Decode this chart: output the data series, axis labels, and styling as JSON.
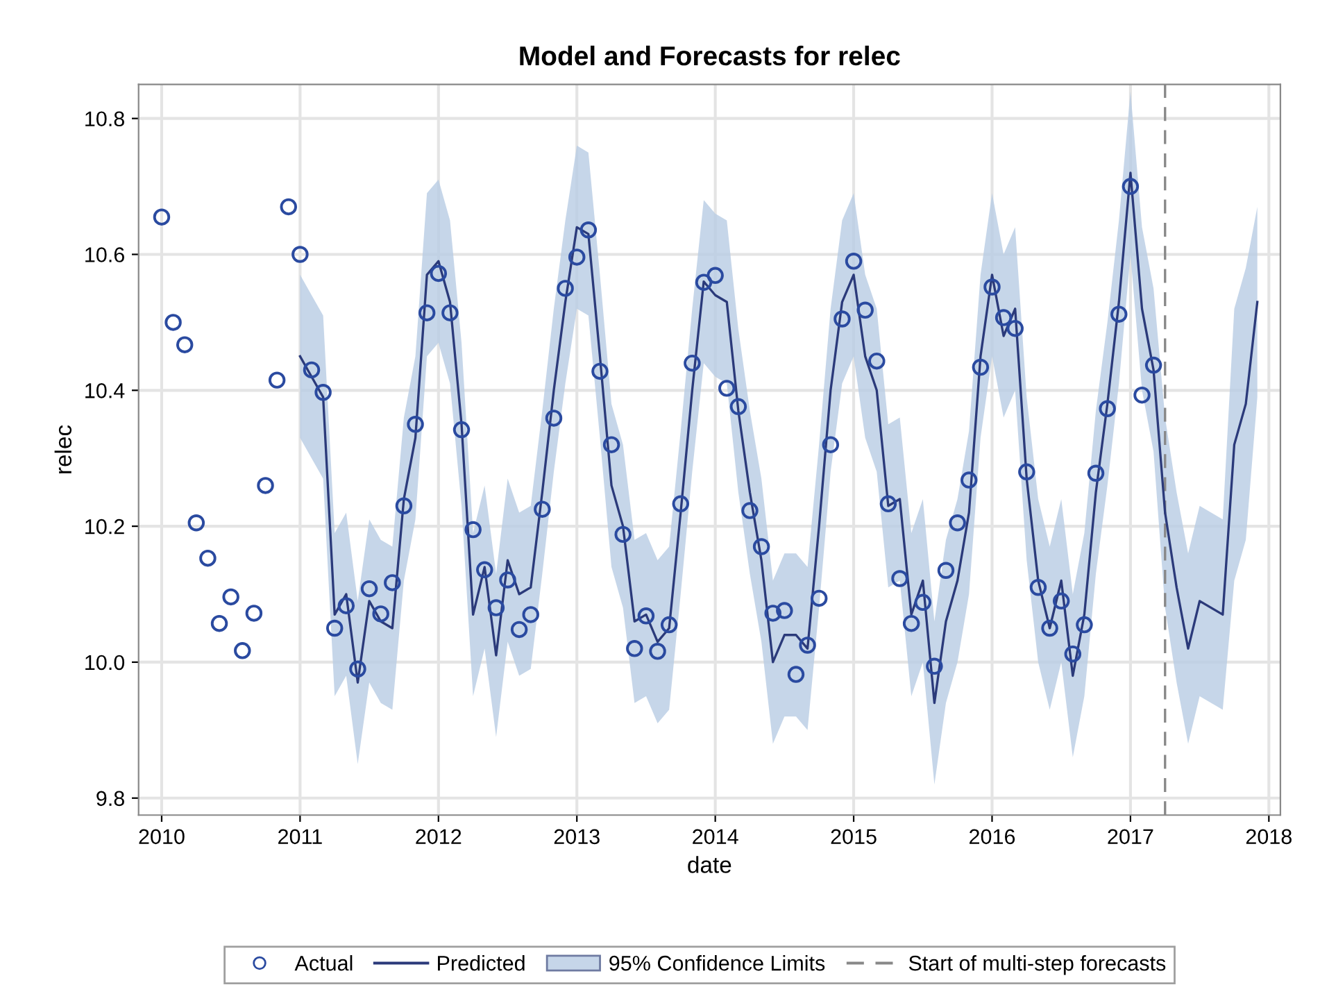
{
  "chart_data": {
    "type": "line",
    "title": "Model and Forecasts for relec",
    "xlabel": "date",
    "ylabel": "relec",
    "xlim": [
      "2009-11",
      "2018-02"
    ],
    "xticks": [
      "2010",
      "2011",
      "2012",
      "2013",
      "2014",
      "2015",
      "2016",
      "2017",
      "2018"
    ],
    "ylim": [
      9.775,
      10.85
    ],
    "yticks": [
      {
        "value": 9.8,
        "label": "9.8"
      },
      {
        "value": 10.0,
        "label": "10.0"
      },
      {
        "value": 10.2,
        "label": "10.2"
      },
      {
        "value": 10.4,
        "label": "10.4"
      },
      {
        "value": 10.6,
        "label": "10.6"
      },
      {
        "value": 10.8,
        "label": "10.8"
      }
    ],
    "grid": true,
    "legend": "bottom",
    "annotations": [
      "95% Confidence Limits"
    ],
    "ref_lines": [
      {
        "axis": "x",
        "value": "2017-04",
        "label": "Start of multi-step forecasts",
        "color": "#888888",
        "line_style": "dashed"
      }
    ],
    "series": [
      {
        "name": "Actual",
        "type": "scatter",
        "marker": "circle",
        "color": "#2a4aa0",
        "x": [
          "2010-01",
          "2010-02",
          "2010-03",
          "2010-04",
          "2010-05",
          "2010-06",
          "2010-07",
          "2010-08",
          "2010-09",
          "2010-10",
          "2010-11",
          "2010-12",
          "2011-01",
          "2011-02",
          "2011-03",
          "2011-04",
          "2011-05",
          "2011-06",
          "2011-07",
          "2011-08",
          "2011-09",
          "2011-10",
          "2011-11",
          "2011-12",
          "2012-01",
          "2012-02",
          "2012-03",
          "2012-04",
          "2012-05",
          "2012-06",
          "2012-07",
          "2012-08",
          "2012-09",
          "2012-10",
          "2012-11",
          "2012-12",
          "2013-01",
          "2013-02",
          "2013-03",
          "2013-04",
          "2013-05",
          "2013-06",
          "2013-07",
          "2013-08",
          "2013-09",
          "2013-10",
          "2013-11",
          "2013-12",
          "2014-01",
          "2014-02",
          "2014-03",
          "2014-04",
          "2014-05",
          "2014-06",
          "2014-07",
          "2014-08",
          "2014-09",
          "2014-10",
          "2014-11",
          "2014-12",
          "2015-01",
          "2015-02",
          "2015-03",
          "2015-04",
          "2015-05",
          "2015-06",
          "2015-07",
          "2015-08",
          "2015-09",
          "2015-10",
          "2015-11",
          "2015-12",
          "2016-01",
          "2016-02",
          "2016-03",
          "2016-04",
          "2016-05",
          "2016-06",
          "2016-07",
          "2016-08",
          "2016-09",
          "2016-10",
          "2016-11",
          "2016-12",
          "2017-01",
          "2017-02",
          "2017-03"
        ],
        "values": [
          10.655,
          10.5,
          10.467,
          10.205,
          10.153,
          10.057,
          10.096,
          10.017,
          10.072,
          10.26,
          10.415,
          10.67,
          10.6,
          10.43,
          10.397,
          10.05,
          10.083,
          9.99,
          10.108,
          10.071,
          10.117,
          10.23,
          10.35,
          10.514,
          10.572,
          10.514,
          10.342,
          10.195,
          10.136,
          10.08,
          10.121,
          10.048,
          10.07,
          10.225,
          10.359,
          10.55,
          10.596,
          10.636,
          10.428,
          10.32,
          10.188,
          10.02,
          10.068,
          10.016,
          10.055,
          10.233,
          10.44,
          10.559,
          10.569,
          10.403,
          10.376,
          10.223,
          10.17,
          10.072,
          10.076,
          9.982,
          10.025,
          10.094,
          10.32,
          10.505,
          10.59,
          10.518,
          10.443,
          10.233,
          10.123,
          10.057,
          10.088,
          9.994,
          10.135,
          10.205,
          10.268,
          10.434,
          10.552,
          10.507,
          10.491,
          10.28,
          10.11,
          10.05,
          10.09,
          10.012,
          10.055,
          10.278,
          10.373,
          10.512,
          10.7,
          10.393,
          10.437
        ]
      },
      {
        "name": "Predicted",
        "marker": "none",
        "line_style": "solid",
        "color": "#2b3a7a",
        "x": [
          "2011-01",
          "2011-02",
          "2011-03",
          "2011-04",
          "2011-05",
          "2011-06",
          "2011-07",
          "2011-08",
          "2011-09",
          "2011-10",
          "2011-11",
          "2011-12",
          "2012-01",
          "2012-02",
          "2012-03",
          "2012-04",
          "2012-05",
          "2012-06",
          "2012-07",
          "2012-08",
          "2012-09",
          "2012-10",
          "2012-11",
          "2012-12",
          "2013-01",
          "2013-02",
          "2013-03",
          "2013-04",
          "2013-05",
          "2013-06",
          "2013-07",
          "2013-08",
          "2013-09",
          "2013-10",
          "2013-11",
          "2013-12",
          "2014-01",
          "2014-02",
          "2014-03",
          "2014-04",
          "2014-05",
          "2014-06",
          "2014-07",
          "2014-08",
          "2014-09",
          "2014-10",
          "2014-11",
          "2014-12",
          "2015-01",
          "2015-02",
          "2015-03",
          "2015-04",
          "2015-05",
          "2015-06",
          "2015-07",
          "2015-08",
          "2015-09",
          "2015-10",
          "2015-11",
          "2015-12",
          "2016-01",
          "2016-02",
          "2016-03",
          "2016-04",
          "2016-05",
          "2016-06",
          "2016-07",
          "2016-08",
          "2016-09",
          "2016-10",
          "2016-11",
          "2016-12",
          "2017-01",
          "2017-02",
          "2017-03",
          "2017-04",
          "2017-05",
          "2017-06",
          "2017-07",
          "2017-08",
          "2017-09",
          "2017-10",
          "2017-11",
          "2017-12"
        ],
        "values": [
          10.45,
          10.42,
          10.39,
          10.07,
          10.1,
          9.97,
          10.09,
          10.06,
          10.05,
          10.24,
          10.33,
          10.57,
          10.59,
          10.53,
          10.35,
          10.07,
          10.14,
          10.01,
          10.15,
          10.1,
          10.11,
          10.25,
          10.4,
          10.53,
          10.64,
          10.63,
          10.45,
          10.26,
          10.2,
          10.06,
          10.07,
          10.03,
          10.05,
          10.22,
          10.4,
          10.56,
          10.54,
          10.53,
          10.37,
          10.25,
          10.15,
          10.0,
          10.04,
          10.04,
          10.02,
          10.2,
          10.4,
          10.53,
          10.57,
          10.45,
          10.4,
          10.23,
          10.24,
          10.07,
          10.12,
          9.94,
          10.06,
          10.12,
          10.22,
          10.45,
          10.57,
          10.48,
          10.52,
          10.27,
          10.12,
          10.05,
          10.12,
          9.98,
          10.07,
          10.25,
          10.38,
          10.53,
          10.72,
          10.52,
          10.43,
          10.22,
          10.11,
          10.02,
          10.09,
          10.08,
          10.07,
          10.32,
          10.38,
          10.53
        ],
        "upper": [
          10.57,
          10.54,
          10.51,
          10.19,
          10.22,
          10.09,
          10.21,
          10.18,
          10.17,
          10.36,
          10.45,
          10.69,
          10.71,
          10.65,
          10.47,
          10.19,
          10.26,
          10.13,
          10.27,
          10.22,
          10.23,
          10.37,
          10.52,
          10.65,
          10.76,
          10.75,
          10.57,
          10.38,
          10.32,
          10.18,
          10.19,
          10.15,
          10.17,
          10.34,
          10.52,
          10.68,
          10.66,
          10.65,
          10.49,
          10.37,
          10.27,
          10.12,
          10.16,
          10.16,
          10.14,
          10.32,
          10.52,
          10.65,
          10.69,
          10.57,
          10.52,
          10.35,
          10.36,
          10.19,
          10.24,
          10.06,
          10.18,
          10.24,
          10.34,
          10.57,
          10.69,
          10.6,
          10.64,
          10.39,
          10.24,
          10.17,
          10.24,
          10.1,
          10.19,
          10.37,
          10.5,
          10.65,
          10.84,
          10.64,
          10.55,
          10.36,
          10.25,
          10.16,
          10.23,
          10.22,
          10.21,
          10.52,
          10.58,
          10.67
        ],
        "lower": [
          10.33,
          10.3,
          10.27,
          9.95,
          9.98,
          9.85,
          9.97,
          9.94,
          9.93,
          10.12,
          10.21,
          10.45,
          10.47,
          10.41,
          10.23,
          9.95,
          10.02,
          9.89,
          10.03,
          9.98,
          9.99,
          10.13,
          10.28,
          10.41,
          10.52,
          10.51,
          10.33,
          10.14,
          10.08,
          9.94,
          9.95,
          9.91,
          9.93,
          10.1,
          10.28,
          10.44,
          10.42,
          10.41,
          10.25,
          10.13,
          10.03,
          9.88,
          9.92,
          9.92,
          9.9,
          10.08,
          10.28,
          10.41,
          10.45,
          10.33,
          10.28,
          10.11,
          10.12,
          9.95,
          10.0,
          9.82,
          9.94,
          10.0,
          10.1,
          10.33,
          10.45,
          10.36,
          10.4,
          10.15,
          10.0,
          9.93,
          10.0,
          9.86,
          9.95,
          10.13,
          10.26,
          10.41,
          10.6,
          10.4,
          10.31,
          10.08,
          9.97,
          9.88,
          9.95,
          9.94,
          9.93,
          10.12,
          10.18,
          10.39
        ]
      }
    ]
  }
}
